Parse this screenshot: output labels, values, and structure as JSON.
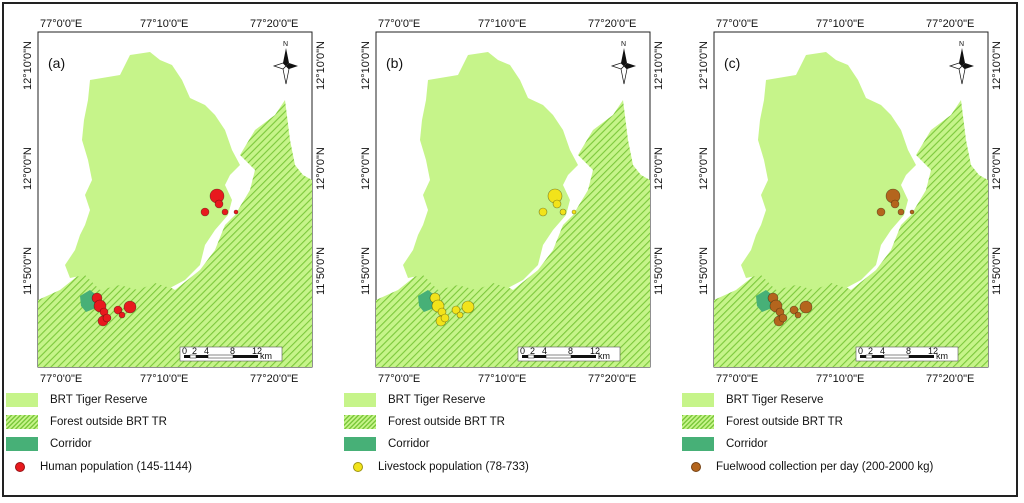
{
  "colors": {
    "tiger_reserve": "#c6f48a",
    "forest_outside": "#7cc83c",
    "corridor": "#47b077",
    "human": "#e8191e",
    "livestock": "#f2e31a",
    "fuelwood": "#b4651d"
  },
  "axes": {
    "top_ticks": [
      "77°0'0\"E",
      "77°10'0\"E",
      "77°20'0\"E"
    ],
    "bottom_ticks": [
      "77°0'0\"E",
      "77°10'0\"E",
      "77°20'0\"E"
    ],
    "left_ticks": [
      "12°10'0\"N",
      "12°0'0\"N",
      "11°50'0\"N"
    ],
    "right_ticks": [
      "12°10'0\"N",
      "12°0'0\"N",
      "11°50'0\"N"
    ]
  },
  "north_arrow": "N",
  "scalebar": {
    "labels": [
      "0",
      "2",
      "4",
      "8",
      "12"
    ],
    "unit": "km"
  },
  "panels": [
    {
      "panel_label": "(a)",
      "legend": {
        "tiger_reserve": "BRT Tiger Reserve",
        "forest_outside": "Forest outside BRT TR",
        "corridor": "Corridor",
        "points": "Human population (145-1144)"
      },
      "point_color": "#e8191e"
    },
    {
      "panel_label": "(b)",
      "legend": {
        "tiger_reserve": "BRT Tiger Reserve",
        "forest_outside": "Forest outside BRT TR",
        "corridor": "Corridor",
        "points": "Livestock population (78-733)"
      },
      "point_color": "#f2e31a"
    },
    {
      "panel_label": "(c)",
      "legend": {
        "tiger_reserve": "BRT Tiger Reserve",
        "forest_outside": "Forest outside BRT TR",
        "corridor": "Corridor",
        "points": "Fuelwood collection per day (200-2000 kg)"
      },
      "point_color": "#b4651d"
    }
  ]
}
